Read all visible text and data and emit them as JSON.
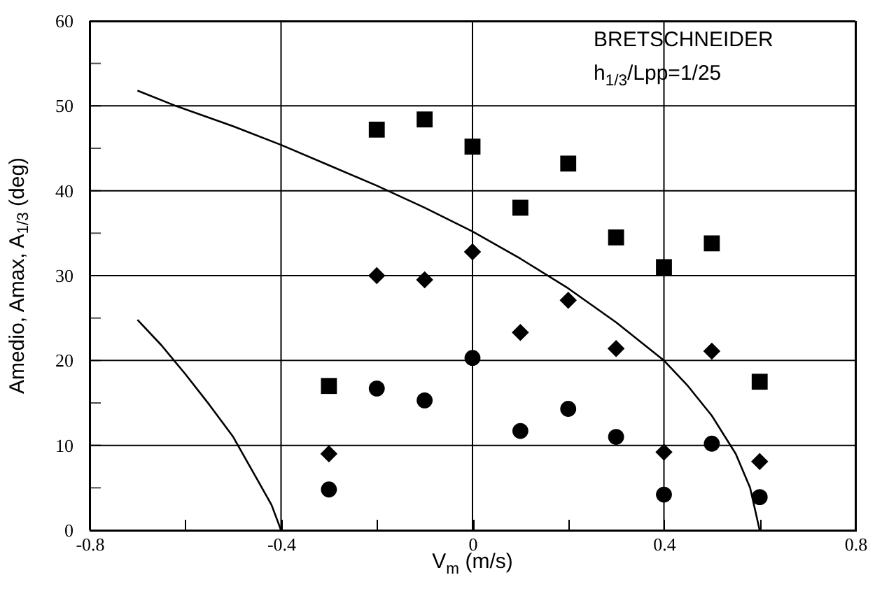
{
  "chart_data": {
    "type": "scatter",
    "xlabel": "V$_{m}$ (m/s)",
    "ylabel": "Amedio, Amax, A$_{1/3}$ (deg)",
    "annotations": [
      "BRETSCHNEIDER",
      "h$_{1/3}$/Lpp=1/25"
    ],
    "xlim": [
      -0.8,
      0.8
    ],
    "ylim": [
      0,
      60
    ],
    "xticks": [
      -0.8,
      {
        "value": -0.6,
        "label": null
      },
      -0.4,
      {
        "value": -0.2,
        "label": null
      },
      0,
      {
        "value": 0.2,
        "label": null
      },
      0.4,
      {
        "value": 0.6,
        "label": null
      },
      0.8
    ],
    "yticks": [
      0,
      {
        "value": 5,
        "label": null
      },
      10,
      {
        "value": 15,
        "label": null
      },
      20,
      {
        "value": 25,
        "label": null
      },
      30,
      {
        "value": 35,
        "label": null
      },
      40,
      {
        "value": 45,
        "label": null
      },
      50,
      {
        "value": 55,
        "label": null
      },
      60
    ],
    "grid": true,
    "series": [
      {
        "marker": "square",
        "color": "#000000",
        "x": [
          -0.3,
          -0.2,
          -0.1,
          0,
          0.1,
          0.2,
          0.3,
          0.4,
          0.5,
          0.6
        ],
        "values": [
          17,
          47.2,
          48.4,
          45.2,
          38,
          43.2,
          34.5,
          31,
          33.8,
          17.5
        ]
      },
      {
        "marker": "diamond",
        "color": "#000000",
        "x": [
          -0.3,
          -0.2,
          -0.1,
          0,
          0.1,
          0.2,
          0.3,
          0.4,
          0.5,
          0.6
        ],
        "values": [
          9,
          30,
          29.5,
          32.8,
          23.3,
          27.1,
          21.4,
          9.2,
          21.1,
          8.1
        ]
      },
      {
        "marker": "circle",
        "color": "#000000",
        "x": [
          -0.3,
          -0.2,
          -0.1,
          0,
          0.1,
          0.2,
          0.3,
          0.4,
          0.5,
          0.6
        ],
        "values": [
          4.8,
          16.7,
          15.3,
          20.3,
          11.7,
          14.3,
          11,
          4.2,
          10.2,
          3.9
        ]
      },
      {
        "type": "line",
        "marker": "none",
        "color": "#000000",
        "x": [
          -0.7,
          -0.62,
          -0.5,
          -0.4,
          -0.3,
          -0.2,
          -0.1,
          0,
          0.1,
          0.2,
          0.3,
          0.4,
          0.45,
          0.5,
          0.55,
          0.58,
          0.6
        ],
        "values": [
          51.8,
          50,
          47.6,
          45.4,
          43,
          40.6,
          38,
          35.2,
          32,
          28.5,
          24.5,
          20,
          17,
          13.5,
          9,
          5,
          0
        ]
      },
      {
        "type": "line",
        "marker": "none",
        "color": "#000000",
        "x": [
          -0.7,
          -0.65,
          -0.6,
          -0.55,
          -0.5,
          -0.45,
          -0.42,
          -0.4
        ],
        "values": [
          24.8,
          21.8,
          18.4,
          14.8,
          11,
          6,
          3,
          0
        ]
      }
    ]
  }
}
